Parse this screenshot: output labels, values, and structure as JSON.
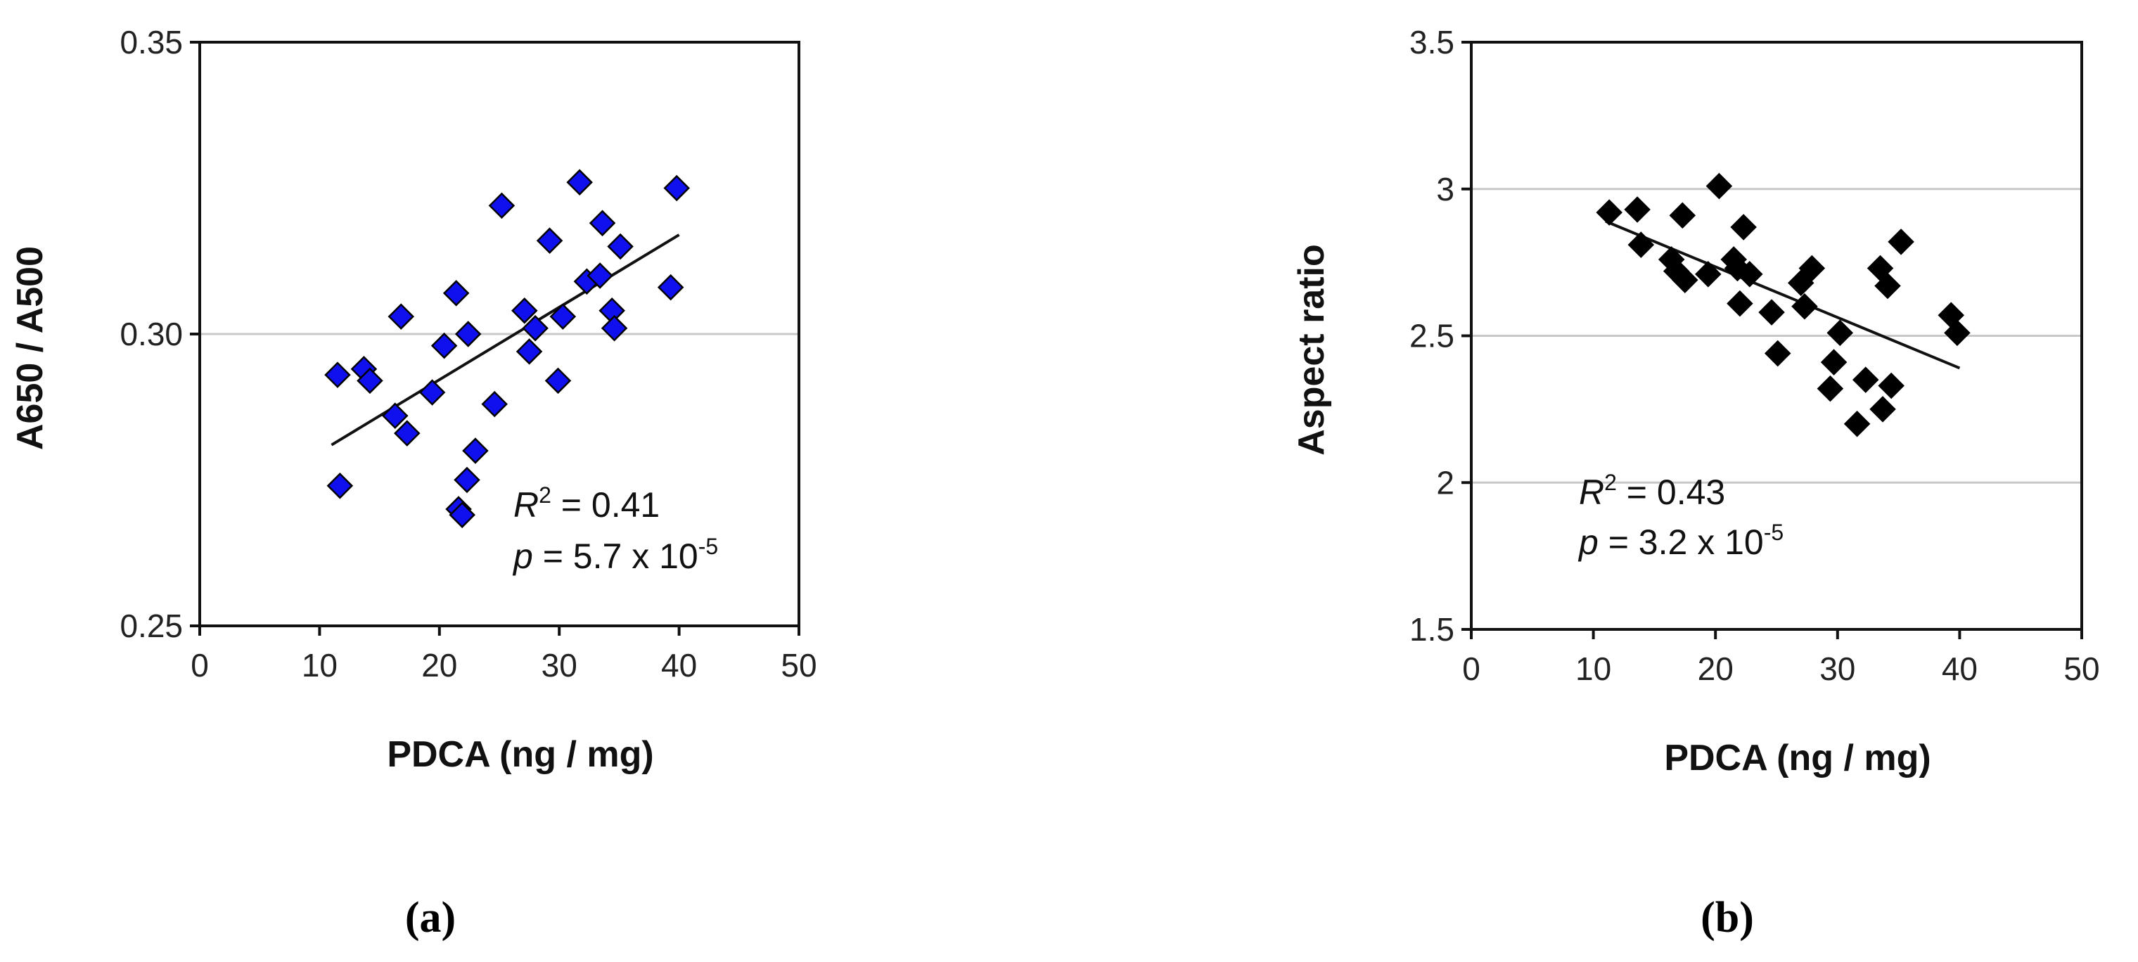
{
  "chart_data": [
    {
      "type": "scatter",
      "panel_label": "(a)",
      "xlabel": "PDCA (ng / mg)",
      "ylabel": "A650 / A500",
      "xlim": [
        0,
        50
      ],
      "ylim": [
        0.25,
        0.35
      ],
      "x_ticks": [
        "0",
        "10",
        "20",
        "30",
        "40",
        "50"
      ],
      "y_ticks": [
        "0.25",
        "0.30",
        "0.35"
      ],
      "gridlines_y": [
        0.3
      ],
      "marker": "diamond",
      "marker_color": "#1010ee",
      "points": [
        [
          11.5,
          0.293
        ],
        [
          11.7,
          0.274
        ],
        [
          13.7,
          0.294
        ],
        [
          14.2,
          0.292
        ],
        [
          16.3,
          0.286
        ],
        [
          16.8,
          0.303
        ],
        [
          17.3,
          0.283
        ],
        [
          19.4,
          0.29
        ],
        [
          20.4,
          0.298
        ],
        [
          21.4,
          0.307
        ],
        [
          21.6,
          0.27
        ],
        [
          21.9,
          0.269
        ],
        [
          22.3,
          0.275
        ],
        [
          22.4,
          0.3
        ],
        [
          23.0,
          0.28
        ],
        [
          24.6,
          0.288
        ],
        [
          25.2,
          0.322
        ],
        [
          27.1,
          0.304
        ],
        [
          27.5,
          0.297
        ],
        [
          28.0,
          0.301
        ],
        [
          29.2,
          0.316
        ],
        [
          29.9,
          0.292
        ],
        [
          30.3,
          0.303
        ],
        [
          31.7,
          0.326
        ],
        [
          32.3,
          0.309
        ],
        [
          33.4,
          0.31
        ],
        [
          33.6,
          0.319
        ],
        [
          34.4,
          0.304
        ],
        [
          34.6,
          0.301
        ],
        [
          35.1,
          0.315
        ],
        [
          39.3,
          0.308
        ],
        [
          39.8,
          0.325
        ]
      ],
      "trendline": {
        "x": [
          11,
          40
        ],
        "y": [
          0.281,
          0.317
        ]
      },
      "annotation": {
        "r2_symbol": "R",
        "r2_sup": "2",
        "r2_text": " = 0.41",
        "p_symbol": "p",
        "p_text": " = 5.7 x 10",
        "p_sup": "-5"
      }
    },
    {
      "type": "scatter",
      "panel_label": "(b)",
      "xlabel": "PDCA (ng / mg)",
      "ylabel": "Aspect ratio",
      "xlim": [
        0,
        50
      ],
      "ylim": [
        1.5,
        3.5
      ],
      "x_ticks": [
        "0",
        "10",
        "20",
        "30",
        "40",
        "50"
      ],
      "y_ticks": [
        "1.5",
        "2",
        "2.5",
        "3",
        "3.5"
      ],
      "gridlines_y": [
        2.0,
        2.5,
        3.0
      ],
      "marker": "diamond",
      "marker_color": "#000000",
      "points": [
        [
          11.3,
          2.92
        ],
        [
          13.6,
          2.93
        ],
        [
          13.9,
          2.81
        ],
        [
          16.4,
          2.76
        ],
        [
          16.8,
          2.72
        ],
        [
          17.3,
          2.91
        ],
        [
          17.5,
          2.69
        ],
        [
          19.4,
          2.71
        ],
        [
          20.3,
          3.01
        ],
        [
          21.5,
          2.76
        ],
        [
          21.8,
          2.73
        ],
        [
          22.0,
          2.61
        ],
        [
          22.3,
          2.87
        ],
        [
          22.8,
          2.71
        ],
        [
          24.6,
          2.58
        ],
        [
          25.1,
          2.44
        ],
        [
          27.0,
          2.68
        ],
        [
          27.3,
          2.6
        ],
        [
          27.9,
          2.73
        ],
        [
          29.4,
          2.32
        ],
        [
          29.7,
          2.41
        ],
        [
          30.2,
          2.51
        ],
        [
          31.6,
          2.2
        ],
        [
          32.3,
          2.35
        ],
        [
          33.5,
          2.73
        ],
        [
          33.7,
          2.25
        ],
        [
          34.1,
          2.67
        ],
        [
          34.4,
          2.33
        ],
        [
          35.2,
          2.82
        ],
        [
          39.3,
          2.57
        ],
        [
          39.8,
          2.51
        ]
      ],
      "trendline": {
        "x": [
          11,
          40
        ],
        "y": [
          2.89,
          2.39
        ]
      },
      "annotation": {
        "r2_symbol": "R",
        "r2_sup": "2",
        "r2_text": " = 0.43",
        "p_symbol": "p",
        "p_text": " = 3.2 x 10",
        "p_sup": "-5"
      }
    }
  ]
}
